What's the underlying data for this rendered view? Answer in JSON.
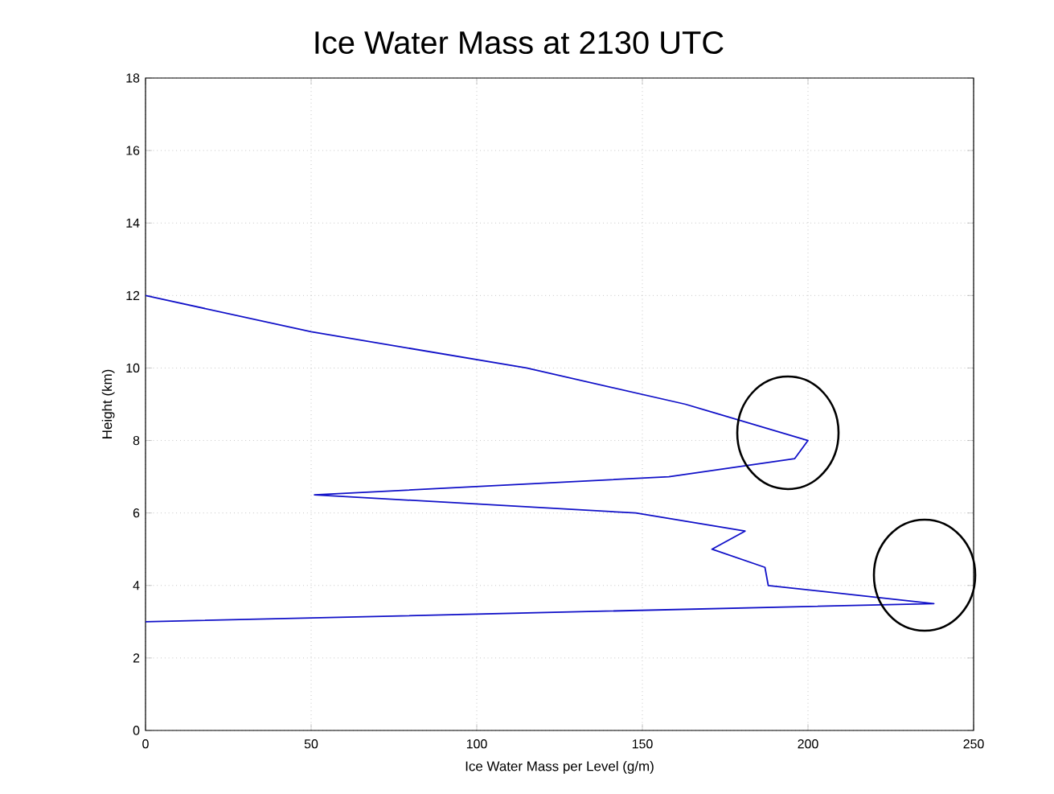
{
  "chart_data": {
    "type": "line",
    "title": "Ice Water Mass at 2130 UTC",
    "xlabel": "Ice Water Mass per Level (g/m)",
    "ylabel": "Height (km)",
    "series": [
      {
        "color": "#1010c8",
        "x": [
          0,
          50,
          115,
          163,
          200,
          196,
          158,
          51,
          148,
          181,
          171,
          187,
          188,
          238,
          0
        ],
        "values": [
          12,
          11,
          10,
          9,
          8,
          7.5,
          7,
          6.5,
          6,
          5.5,
          5,
          4.5,
          4,
          3.5,
          3
        ]
      }
    ],
    "xlim": [
      0,
      250
    ],
    "ylim": [
      0,
      18
    ],
    "xticks": [
      0,
      50,
      100,
      150,
      200,
      250
    ],
    "yticks": [
      0,
      2,
      4,
      6,
      8,
      10,
      12,
      14,
      16,
      18
    ],
    "grid": true,
    "legend": false,
    "marker": "none",
    "line_style": "solid"
  }
}
